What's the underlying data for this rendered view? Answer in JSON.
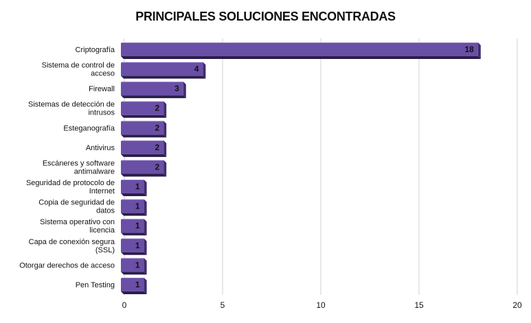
{
  "chart_data": {
    "type": "bar",
    "orientation": "horizontal",
    "title": "PRINCIPALES SOLUCIONES ENCONTRADAS",
    "xlabel": "",
    "ylabel": "",
    "categories": [
      "Criptografía",
      "Sistema de control de acceso",
      "Firewall",
      "Sistemas de detección de intrusos",
      "Esteganografía",
      "Antivirus",
      "Escáneres y software antimalware",
      "Seguridad de protocolo de Internet",
      "Copia de seguridad de datos",
      "Sistema operativo con licencia",
      "Capa de conexión segura (SSL)",
      "Otorgar derechos de acceso",
      "Pen Testing"
    ],
    "values": [
      18,
      4,
      3,
      2,
      2,
      2,
      2,
      1,
      1,
      1,
      1,
      1,
      1
    ],
    "xlim": [
      0,
      20
    ],
    "xticks": [
      0,
      5,
      10,
      15,
      20
    ],
    "grid": true,
    "legend": "none",
    "data_labels": true,
    "colors": {
      "bar_front": "#6a4fa6",
      "bar_top": "#8a72c2",
      "bar_side": "#3f2b6e",
      "bar_shadow": "#2a1d4a",
      "grid": "#d0d0d0",
      "text": "#111111"
    }
  }
}
